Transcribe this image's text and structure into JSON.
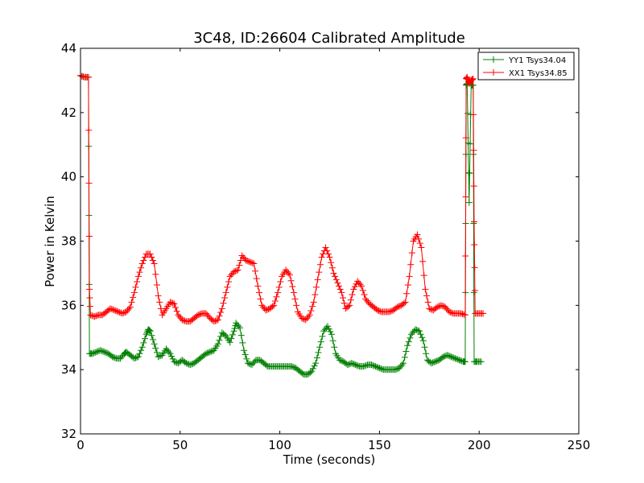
{
  "chart_data": {
    "type": "line",
    "title": "3C48, ID:26604 Calibrated Amplitude",
    "xlabel": "Time (seconds)",
    "ylabel": "Power in Kelvin",
    "xlim": [
      0,
      250
    ],
    "ylim": [
      32,
      44
    ],
    "xticks": [
      0,
      50,
      100,
      150,
      200,
      250
    ],
    "yticks": [
      32,
      34,
      36,
      38,
      40,
      42,
      44
    ],
    "grid": false,
    "legend_position": "top-right",
    "marker": "+",
    "series": [
      {
        "name": "YY1 Tsys34.04",
        "color": "#008000",
        "points": [
          [
            0,
            43.15
          ],
          [
            2,
            43.1
          ],
          [
            4,
            43.1
          ],
          [
            4.5,
            34.5
          ],
          [
            6,
            34.5
          ],
          [
            8,
            34.55
          ],
          [
            10,
            34.6
          ],
          [
            12,
            34.55
          ],
          [
            14,
            34.5
          ],
          [
            16,
            34.4
          ],
          [
            18,
            34.35
          ],
          [
            20,
            34.35
          ],
          [
            22,
            34.5
          ],
          [
            23,
            34.55
          ],
          [
            25,
            34.45
          ],
          [
            27,
            34.35
          ],
          [
            29,
            34.4
          ],
          [
            31,
            34.7
          ],
          [
            33,
            35.1
          ],
          [
            34,
            35.25
          ],
          [
            35,
            35.2
          ],
          [
            37,
            34.8
          ],
          [
            39,
            34.4
          ],
          [
            41,
            34.45
          ],
          [
            43,
            34.65
          ],
          [
            45,
            34.5
          ],
          [
            47,
            34.25
          ],
          [
            49,
            34.2
          ],
          [
            51,
            34.3
          ],
          [
            53,
            34.2
          ],
          [
            55,
            34.15
          ],
          [
            57,
            34.2
          ],
          [
            59,
            34.3
          ],
          [
            61,
            34.4
          ],
          [
            63,
            34.5
          ],
          [
            65,
            34.55
          ],
          [
            67,
            34.6
          ],
          [
            69,
            34.8
          ],
          [
            71,
            35.15
          ],
          [
            73,
            35.05
          ],
          [
            75,
            34.85
          ],
          [
            77,
            35.2
          ],
          [
            78,
            35.45
          ],
          [
            80,
            35.3
          ],
          [
            82,
            34.6
          ],
          [
            84,
            34.2
          ],
          [
            86,
            34.15
          ],
          [
            88,
            34.3
          ],
          [
            90,
            34.3
          ],
          [
            92,
            34.2
          ],
          [
            94,
            34.1
          ],
          [
            96,
            34.1
          ],
          [
            98,
            34.1
          ],
          [
            100,
            34.1
          ],
          [
            102,
            34.1
          ],
          [
            104,
            34.1
          ],
          [
            106,
            34.1
          ],
          [
            108,
            34.05
          ],
          [
            110,
            33.95
          ],
          [
            112,
            33.85
          ],
          [
            114,
            33.85
          ],
          [
            116,
            33.95
          ],
          [
            118,
            34.2
          ],
          [
            120,
            34.7
          ],
          [
            122,
            35.2
          ],
          [
            124,
            35.35
          ],
          [
            126,
            35.1
          ],
          [
            128,
            34.5
          ],
          [
            130,
            34.3
          ],
          [
            132,
            34.25
          ],
          [
            134,
            34.15
          ],
          [
            136,
            34.2
          ],
          [
            138,
            34.15
          ],
          [
            140,
            34.1
          ],
          [
            142,
            34.1
          ],
          [
            144,
            34.15
          ],
          [
            146,
            34.15
          ],
          [
            148,
            34.1
          ],
          [
            150,
            34.05
          ],
          [
            152,
            34.0
          ],
          [
            154,
            34.0
          ],
          [
            156,
            34.0
          ],
          [
            158,
            34.0
          ],
          [
            160,
            34.05
          ],
          [
            162,
            34.2
          ],
          [
            164,
            34.75
          ],
          [
            166,
            35.1
          ],
          [
            168,
            35.25
          ],
          [
            170,
            35.2
          ],
          [
            172,
            34.9
          ],
          [
            174,
            34.3
          ],
          [
            176,
            34.2
          ],
          [
            178,
            34.25
          ],
          [
            180,
            34.3
          ],
          [
            182,
            34.4
          ],
          [
            184,
            34.45
          ],
          [
            186,
            34.4
          ],
          [
            188,
            34.35
          ],
          [
            190,
            34.3
          ],
          [
            192,
            34.25
          ],
          [
            193,
            34.25
          ],
          [
            193.5,
            42.85
          ],
          [
            194,
            42.9
          ],
          [
            195,
            39.2
          ],
          [
            196,
            42.85
          ],
          [
            197,
            42.85
          ],
          [
            197.5,
            34.25
          ],
          [
            199,
            34.25
          ],
          [
            201,
            34.25
          ]
        ]
      },
      {
        "name": "XX1 Tsys34.85",
        "color": "#ff0000",
        "points": [
          [
            0,
            43.15
          ],
          [
            2,
            43.1
          ],
          [
            4,
            43.1
          ],
          [
            4.5,
            36.5
          ],
          [
            5,
            35.7
          ],
          [
            7,
            35.65
          ],
          [
            9,
            35.7
          ],
          [
            11,
            35.7
          ],
          [
            13,
            35.8
          ],
          [
            15,
            35.9
          ],
          [
            17,
            35.85
          ],
          [
            19,
            35.8
          ],
          [
            21,
            35.75
          ],
          [
            23,
            35.8
          ],
          [
            25,
            35.95
          ],
          [
            27,
            36.4
          ],
          [
            29,
            36.9
          ],
          [
            31,
            37.3
          ],
          [
            33,
            37.6
          ],
          [
            35,
            37.6
          ],
          [
            37,
            37.3
          ],
          [
            39,
            36.3
          ],
          [
            41,
            35.7
          ],
          [
            43,
            35.9
          ],
          [
            45,
            36.1
          ],
          [
            47,
            36.05
          ],
          [
            49,
            35.7
          ],
          [
            51,
            35.55
          ],
          [
            53,
            35.5
          ],
          [
            55,
            35.5
          ],
          [
            57,
            35.6
          ],
          [
            59,
            35.7
          ],
          [
            61,
            35.75
          ],
          [
            63,
            35.75
          ],
          [
            65,
            35.6
          ],
          [
            67,
            35.5
          ],
          [
            69,
            35.55
          ],
          [
            71,
            35.9
          ],
          [
            73,
            36.4
          ],
          [
            75,
            36.9
          ],
          [
            77,
            37.05
          ],
          [
            79,
            37.1
          ],
          [
            81,
            37.55
          ],
          [
            83,
            37.4
          ],
          [
            85,
            37.35
          ],
          [
            87,
            37.3
          ],
          [
            89,
            36.6
          ],
          [
            91,
            36.0
          ],
          [
            93,
            35.85
          ],
          [
            95,
            35.9
          ],
          [
            97,
            36.0
          ],
          [
            99,
            36.4
          ],
          [
            101,
            36.9
          ],
          [
            103,
            37.1
          ],
          [
            105,
            36.95
          ],
          [
            107,
            36.4
          ],
          [
            109,
            35.8
          ],
          [
            111,
            35.6
          ],
          [
            113,
            35.55
          ],
          [
            115,
            35.7
          ],
          [
            117,
            36.1
          ],
          [
            119,
            36.8
          ],
          [
            121,
            37.5
          ],
          [
            123,
            37.8
          ],
          [
            125,
            37.5
          ],
          [
            127,
            37.0
          ],
          [
            129,
            36.7
          ],
          [
            131,
            36.4
          ],
          [
            133,
            35.9
          ],
          [
            135,
            36.0
          ],
          [
            137,
            36.5
          ],
          [
            139,
            36.75
          ],
          [
            141,
            36.6
          ],
          [
            143,
            36.2
          ],
          [
            145,
            36.05
          ],
          [
            147,
            35.95
          ],
          [
            149,
            35.85
          ],
          [
            151,
            35.8
          ],
          [
            153,
            35.8
          ],
          [
            155,
            35.8
          ],
          [
            157,
            35.85
          ],
          [
            159,
            35.95
          ],
          [
            161,
            36.0
          ],
          [
            163,
            36.1
          ],
          [
            165,
            36.9
          ],
          [
            167,
            38.0
          ],
          [
            169,
            38.2
          ],
          [
            171,
            37.8
          ],
          [
            173,
            36.5
          ],
          [
            175,
            35.9
          ],
          [
            177,
            35.85
          ],
          [
            179,
            35.95
          ],
          [
            181,
            36.0
          ],
          [
            183,
            35.95
          ],
          [
            185,
            35.8
          ],
          [
            187,
            35.75
          ],
          [
            189,
            35.75
          ],
          [
            191,
            35.75
          ],
          [
            193,
            35.7
          ],
          [
            193.5,
            43.05
          ],
          [
            194,
            43.1
          ],
          [
            195,
            42.9
          ],
          [
            196,
            43.0
          ],
          [
            197,
            43.05
          ],
          [
            197.5,
            38.6
          ],
          [
            198,
            35.75
          ],
          [
            200,
            35.75
          ],
          [
            202,
            35.75
          ]
        ]
      }
    ]
  }
}
